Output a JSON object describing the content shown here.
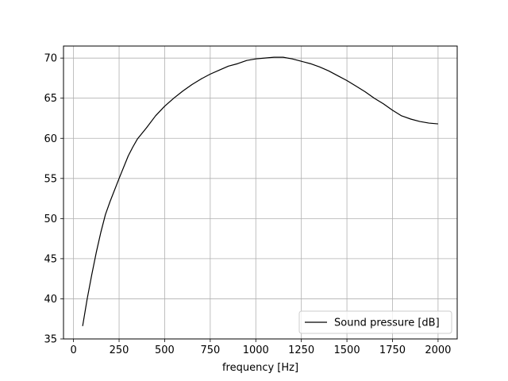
{
  "chart_data": {
    "type": "line",
    "title": "",
    "xlabel": "frequency [Hz]",
    "ylabel": "",
    "xlim": [
      -55,
      2105
    ],
    "ylim": [
      35,
      71.5
    ],
    "xticks": [
      0,
      250,
      500,
      750,
      1000,
      1250,
      1500,
      1750,
      2000
    ],
    "yticks": [
      35,
      40,
      45,
      50,
      55,
      60,
      65,
      70
    ],
    "grid": true,
    "legend_position": "lower right",
    "series": [
      {
        "name": "Sound pressure [dB]",
        "color": "#000000",
        "x": [
          50,
          75,
          100,
          125,
          150,
          175,
          200,
          250,
          300,
          325,
          350,
          400,
          450,
          500,
          550,
          600,
          650,
          700,
          750,
          800,
          850,
          900,
          950,
          1000,
          1050,
          1100,
          1150,
          1200,
          1250,
          1300,
          1350,
          1400,
          1450,
          1500,
          1550,
          1600,
          1650,
          1700,
          1750,
          1800,
          1850,
          1900,
          1950,
          2000
        ],
        "y": [
          36.6,
          40.0,
          43.0,
          45.8,
          48.3,
          50.5,
          52.1,
          55.0,
          57.8,
          58.9,
          59.9,
          61.3,
          62.8,
          64.0,
          65.0,
          65.9,
          66.7,
          67.4,
          68.0,
          68.5,
          69.0,
          69.3,
          69.7,
          69.9,
          70.0,
          70.1,
          70.1,
          69.9,
          69.6,
          69.3,
          68.9,
          68.4,
          67.8,
          67.2,
          66.5,
          65.8,
          65.0,
          64.3,
          63.5,
          62.8,
          62.4,
          62.1,
          61.9,
          61.8
        ]
      }
    ]
  }
}
